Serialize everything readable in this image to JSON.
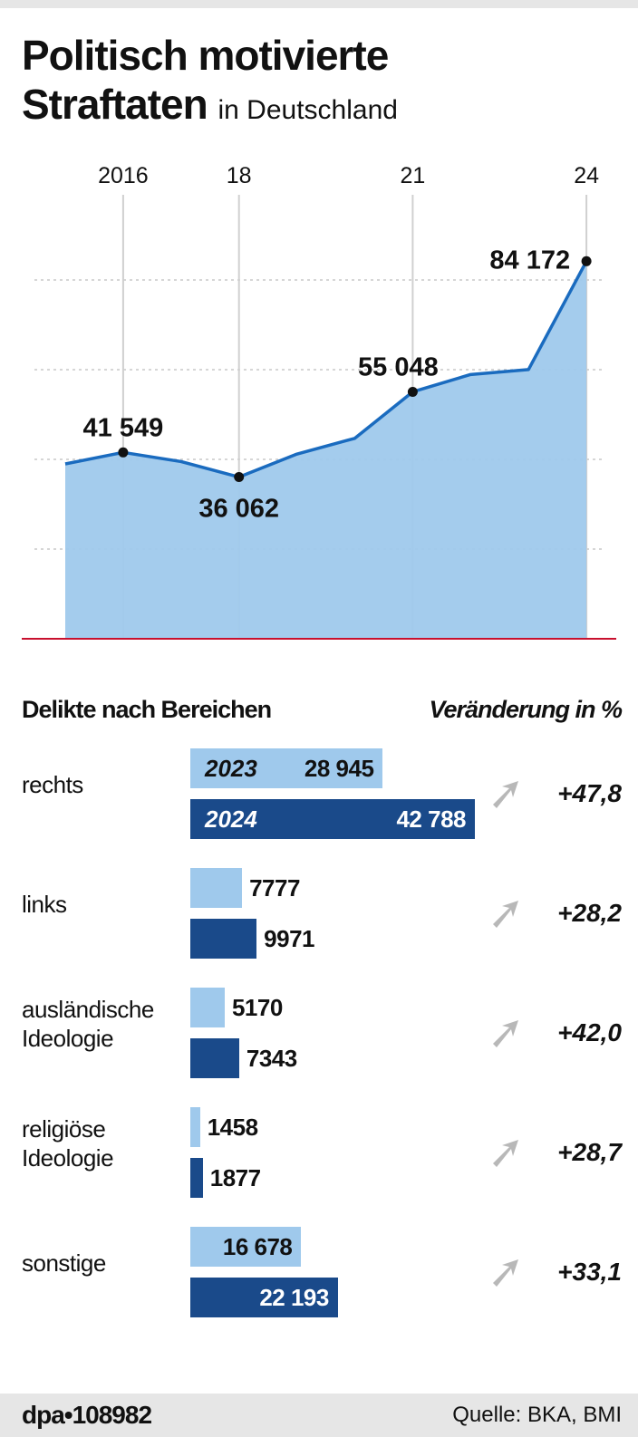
{
  "header": {
    "title": "Politisch motivierte",
    "title2": "Straftaten",
    "subtitle": "in Deutschland"
  },
  "chart_data": [
    {
      "type": "area",
      "title": "Politisch motivierte Straftaten in Deutschland",
      "x": [
        2015,
        2016,
        2017,
        2018,
        2019,
        2020,
        2021,
        2022,
        2023,
        2024
      ],
      "values": [
        38981,
        41549,
        39505,
        36062,
        41177,
        44692,
        55048,
        58916,
        60028,
        84172
      ],
      "x_tick_labels": [
        {
          "year": 2016,
          "label": "2016"
        },
        {
          "year": 2018,
          "label": "18"
        },
        {
          "year": 2021,
          "label": "21"
        },
        {
          "year": 2024,
          "label": "24"
        }
      ],
      "data_labels": [
        {
          "year": 2016,
          "label": "41 549"
        },
        {
          "year": 2018,
          "label": "36 062"
        },
        {
          "year": 2021,
          "label": "55 048"
        },
        {
          "year": 2024,
          "label": "84 172"
        }
      ],
      "ylim": [
        0,
        85000
      ],
      "grid": "horizontal dotted at 20000, 40000, 60000, 80000",
      "colors": {
        "fill": "#9fc9ec",
        "line": "#1a6bbf",
        "baseline": "#c8102e"
      }
    },
    {
      "type": "bar",
      "title": "Delikte nach Bereichen",
      "change_title": "Veränderung in %",
      "series_labels": [
        "2023",
        "2024"
      ],
      "categories": [
        "rechts",
        "links",
        "ausländische\nIdeologie",
        "religiöse\nIdeologie",
        "sonstige"
      ],
      "series": [
        {
          "name": "2023",
          "values": [
            28945,
            7777,
            5170,
            1458,
            16678
          ],
          "labels": [
            "28 945",
            "7777",
            "5170",
            "1458",
            "16 678"
          ],
          "color": "#9fc9ec"
        },
        {
          "name": "2024",
          "values": [
            42788,
            9971,
            7343,
            1877,
            22193
          ],
          "labels": [
            "42 788",
            "9971",
            "7343",
            "1877",
            "22 193"
          ],
          "color": "#1a4a8a"
        }
      ],
      "change": [
        "+47,8",
        "+28,2",
        "+42,0",
        "+28,7",
        "+33,1"
      ],
      "change_icon": "arrow-up-right-icon"
    }
  ],
  "footer": {
    "credit": "dpa•108982",
    "source": "Quelle: BKA, BMI"
  }
}
